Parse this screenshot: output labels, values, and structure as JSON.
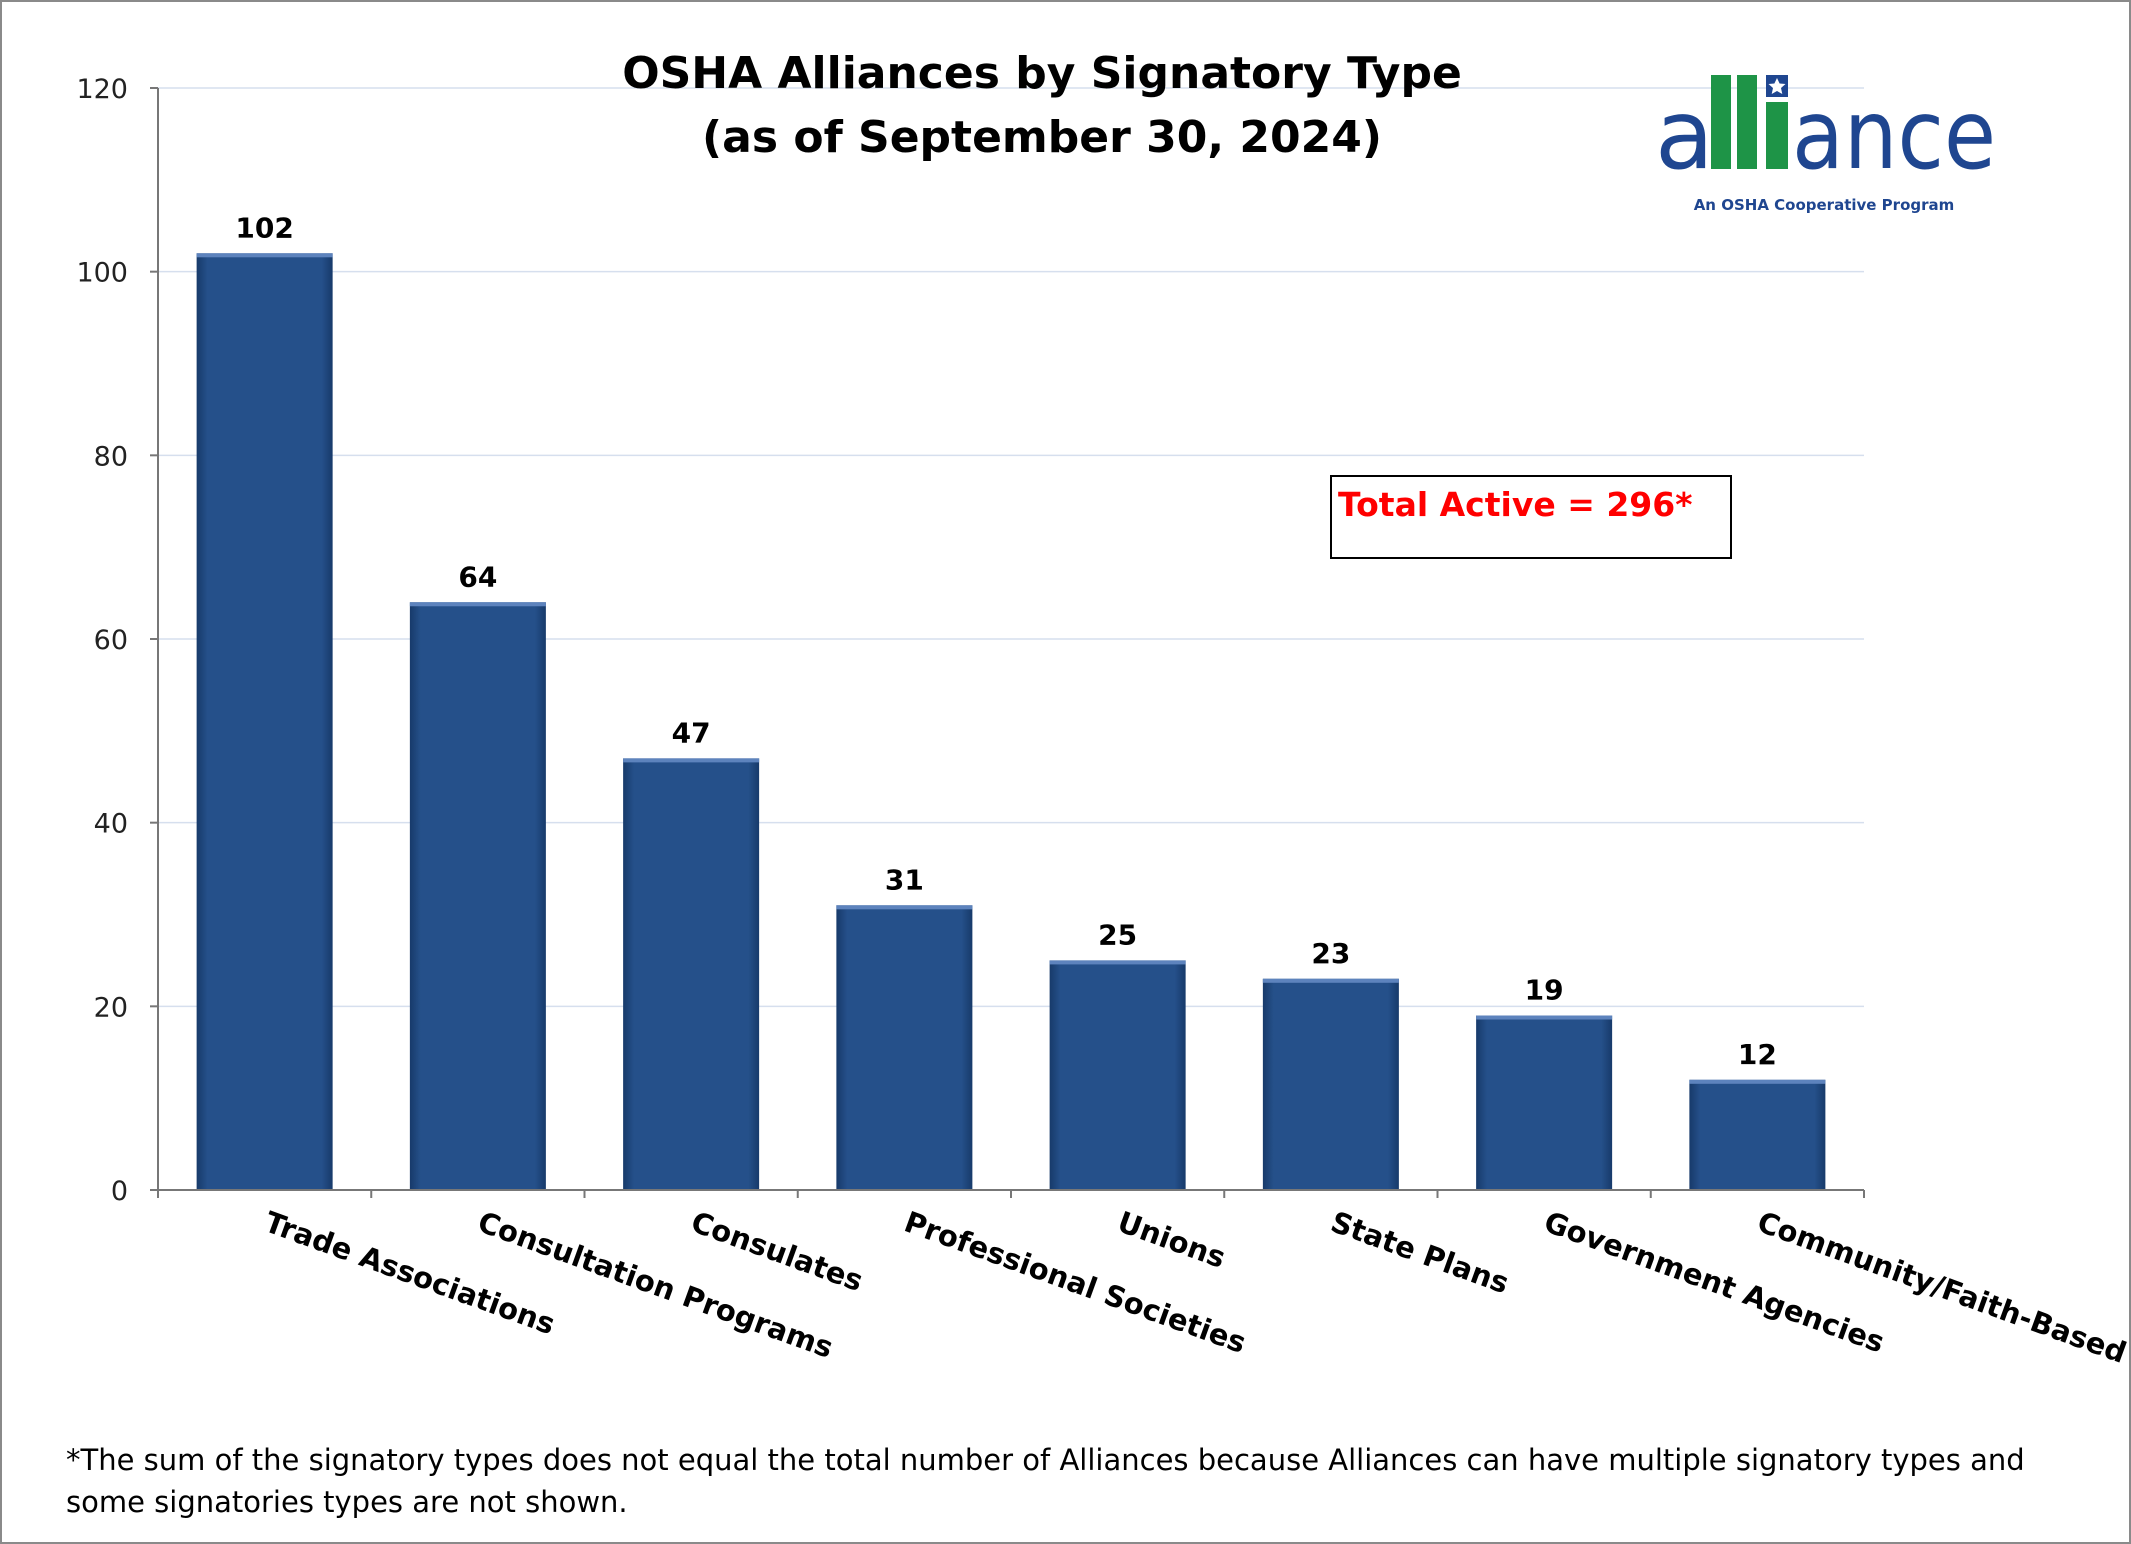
{
  "chart_data": {
    "type": "bar",
    "title": "OSHA Alliances by Signatory Type",
    "subtitle": "(as of September 30, 2024)",
    "categories": [
      "Trade Associations",
      "Consultation Programs",
      "Consulates",
      "Professional Societies",
      "Unions",
      "State Plans",
      "Government Agencies",
      "Community/Faith-Based Orgs"
    ],
    "values": [
      102,
      64,
      47,
      31,
      25,
      23,
      19,
      12
    ],
    "ylim": [
      0,
      120
    ],
    "yticks": [
      0,
      20,
      40,
      60,
      80,
      100,
      120
    ],
    "grid": true,
    "bar_color": "#25508a",
    "annotation": "Total Active = 296*",
    "annotation_color": "#ff0000",
    "footnote_lines": [
      "*The sum of the signatory types does not  equal the total number of Alliances because Alliances can have multiple signatory types and",
      "some signatories types are not shown."
    ]
  },
  "logo": {
    "text": "alliance",
    "tagline": "An OSHA Cooperative Program",
    "blue": "#1f4690",
    "green": "#1e9447"
  }
}
